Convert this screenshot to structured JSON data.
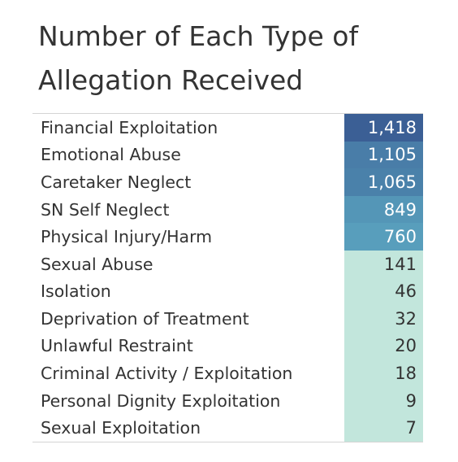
{
  "chart_data": {
    "type": "table",
    "title": "Number of Each Type of Allegation Received",
    "rows": [
      {
        "label": "Financial Exploitation",
        "value": 1418,
        "display": "1,418"
      },
      {
        "label": "Emotional Abuse",
        "value": 1105,
        "display": "1,105"
      },
      {
        "label": "Caretaker Neglect",
        "value": 1065,
        "display": "1,065"
      },
      {
        "label": "SN Self Neglect",
        "value": 849,
        "display": "849"
      },
      {
        "label": "Physical Injury/Harm",
        "value": 760,
        "display": "760"
      },
      {
        "label": "Sexual Abuse",
        "value": 141,
        "display": "141"
      },
      {
        "label": "Isolation",
        "value": 46,
        "display": "46"
      },
      {
        "label": "Deprivation of Treatment",
        "value": 32,
        "display": "32"
      },
      {
        "label": "Unlawful Restraint",
        "value": 20,
        "display": "20"
      },
      {
        "label": "Criminal Activity / Exploitation",
        "value": 18,
        "display": "18"
      },
      {
        "label": "Personal Dignity Exploitation",
        "value": 9,
        "display": "9"
      },
      {
        "label": "Sexual Exploitation",
        "value": 7,
        "display": "7"
      }
    ],
    "color_scale": {
      "low": "#c2e6dc",
      "mid": "#5aa3bf",
      "high": "#3b5f95"
    }
  }
}
